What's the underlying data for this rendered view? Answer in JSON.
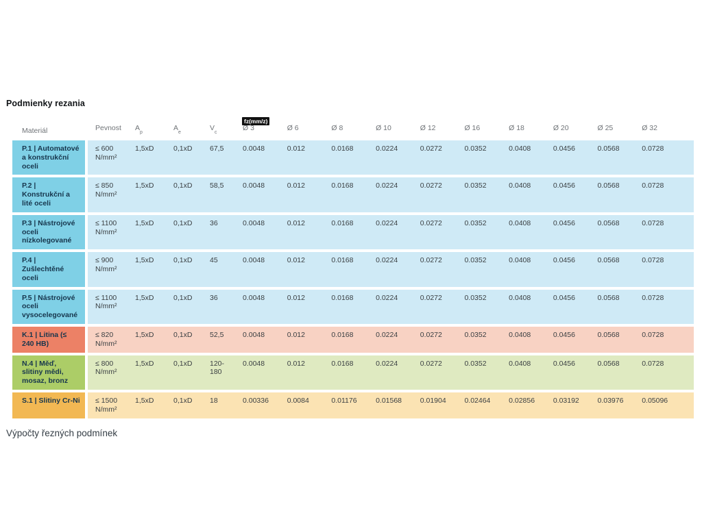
{
  "title": "Podmienky rezania",
  "footer": "Výpočty řezných podmínek",
  "colors": {
    "blue": {
      "head": "#7fd0e6",
      "body": "#cfeaf6"
    },
    "red": {
      "head": "#ec8166",
      "body": "#f8d2c3"
    },
    "green": {
      "head": "#accd67",
      "body": "#dfeac1"
    },
    "orange": {
      "head": "#f2b853",
      "body": "#fbe3b3"
    },
    "badge_bg": "#111111",
    "badge_text": "#ffffff",
    "material_text": "#17364d",
    "header_text": "#6f7377",
    "body_text": "#3a3f42"
  },
  "table": {
    "badge_label": "fz(mm/z)",
    "headers": {
      "material": "Materiál",
      "pevnost": "Pevnost",
      "ap_base": "A",
      "ap_sub": "p",
      "ae_base": "A",
      "ae_sub": "e",
      "vc_base": "V",
      "vc_sub": "c",
      "diameters": [
        "Ø 3",
        "Ø 6",
        "Ø 8",
        "Ø 10",
        "Ø 12",
        "Ø 16",
        "Ø 18",
        "Ø 20",
        "Ø 25",
        "Ø 32"
      ]
    },
    "rows": [
      {
        "theme": "blue",
        "material": "P.1 | Automatové\na konstrukční\noceli",
        "pevnost": "≤ 600\nN/mm²",
        "ap": "1,5xD",
        "ae": "0,1xD",
        "vc": "67,5",
        "values": [
          "0.0048",
          "0.012",
          "0.0168",
          "0.0224",
          "0.0272",
          "0.0352",
          "0.0408",
          "0.0456",
          "0.0568",
          "0.0728"
        ]
      },
      {
        "theme": "blue",
        "material": "P.2 |\nKonstrukční a\nlité oceli",
        "pevnost": "≤ 850\nN/mm²",
        "ap": "1,5xD",
        "ae": "0,1xD",
        "vc": "58,5",
        "values": [
          "0.0048",
          "0.012",
          "0.0168",
          "0.0224",
          "0.0272",
          "0.0352",
          "0.0408",
          "0.0456",
          "0.0568",
          "0.0728"
        ]
      },
      {
        "theme": "blue",
        "material": "P.3 | Nástrojové\noceli\nnízkolegované",
        "pevnost": "≤ 1100\nN/mm²",
        "ap": "1,5xD",
        "ae": "0,1xD",
        "vc": "36",
        "values": [
          "0.0048",
          "0.012",
          "0.0168",
          "0.0224",
          "0.0272",
          "0.0352",
          "0.0408",
          "0.0456",
          "0.0568",
          "0.0728"
        ]
      },
      {
        "theme": "blue",
        "material": "P.4 |\nZušlechtěné\noceli",
        "pevnost": "≤ 900\nN/mm²",
        "ap": "1,5xD",
        "ae": "0,1xD",
        "vc": "45",
        "values": [
          "0.0048",
          "0.012",
          "0.0168",
          "0.0224",
          "0.0272",
          "0.0352",
          "0.0408",
          "0.0456",
          "0.0568",
          "0.0728"
        ]
      },
      {
        "theme": "blue",
        "material": "P.5 | Nástrojové\noceli\nvysocelegované",
        "pevnost": "≤ 1100\nN/mm²",
        "ap": "1,5xD",
        "ae": "0,1xD",
        "vc": "36",
        "values": [
          "0.0048",
          "0.012",
          "0.0168",
          "0.0224",
          "0.0272",
          "0.0352",
          "0.0408",
          "0.0456",
          "0.0568",
          "0.0728"
        ]
      },
      {
        "theme": "red",
        "material": "K.1 | Litina (≤\n240 HB)",
        "pevnost": "≤ 820\nN/mm²",
        "ap": "1,5xD",
        "ae": "0,1xD",
        "vc": "52,5",
        "values": [
          "0.0048",
          "0.012",
          "0.0168",
          "0.0224",
          "0.0272",
          "0.0352",
          "0.0408",
          "0.0456",
          "0.0568",
          "0.0728"
        ]
      },
      {
        "theme": "green",
        "material": "N.4 | Měď,\nslitiny mědi,\nmosaz, bronz",
        "pevnost": "≤ 800\nN/mm²",
        "ap": "1,5xD",
        "ae": "0,1xD",
        "vc": "120-\n180",
        "values": [
          "0.0048",
          "0.012",
          "0.0168",
          "0.0224",
          "0.0272",
          "0.0352",
          "0.0408",
          "0.0456",
          "0.0568",
          "0.0728"
        ]
      },
      {
        "theme": "orange",
        "material": "S.1 | Slitiny Cr-Ni",
        "pevnost": "≤ 1500\nN/mm²",
        "ap": "1,5xD",
        "ae": "0,1xD",
        "vc": "18",
        "values": [
          "0.00336",
          "0.0084",
          "0.01176",
          "0.01568",
          "0.01904",
          "0.02464",
          "0.02856",
          "0.03192",
          "0.03976",
          "0.05096"
        ]
      }
    ]
  }
}
